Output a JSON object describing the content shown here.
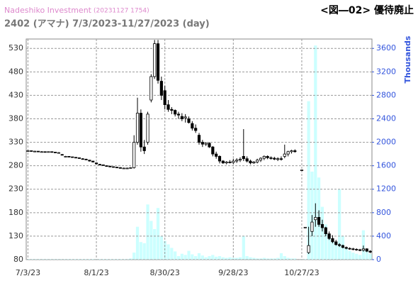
{
  "chart_data": {
    "type": "candlestick",
    "source": "Nadeshiko Investment",
    "source_stamp": "(20231127 1754)",
    "title": "2402 (アマナ) 7/3/2023-11/27/2023 (day)",
    "annotation": "<図―02> 優待廃止",
    "y2_label": "Thousands",
    "up_color": "#ffffff",
    "down_color": "#000000",
    "volume_color": "#ccffff",
    "ylim": [
      80,
      550
    ],
    "yticks": [
      80,
      130,
      180,
      230,
      280,
      330,
      380,
      430,
      480,
      530
    ],
    "y2lim": [
      0,
      3760
    ],
    "y2ticks": [
      0,
      400,
      800,
      1200,
      1600,
      2000,
      2400,
      2800,
      3200,
      3600
    ],
    "grid": true,
    "categories": [
      "7/3/23",
      null,
      null,
      null,
      null,
      null,
      null,
      null,
      null,
      null,
      null,
      null,
      null,
      null,
      null,
      null,
      null,
      null,
      null,
      null,
      "8/1/23",
      null,
      null,
      null,
      null,
      null,
      null,
      null,
      null,
      null,
      null,
      null,
      null,
      null,
      null,
      null,
      null,
      null,
      null,
      null,
      "8/30/23",
      null,
      null,
      null,
      null,
      null,
      null,
      null,
      null,
      null,
      null,
      null,
      null,
      null,
      null,
      null,
      null,
      null,
      null,
      null,
      "9/28/23",
      null,
      null,
      null,
      null,
      null,
      null,
      null,
      null,
      null,
      null,
      null,
      null,
      null,
      null,
      null,
      null,
      null,
      null,
      null,
      "10/27/23",
      null,
      null,
      null,
      null,
      null,
      null,
      null,
      null,
      null,
      null,
      null,
      null,
      null,
      null,
      null,
      null,
      null,
      null,
      null,
      null
    ],
    "ohlc": [
      [
        312,
        313,
        311,
        312
      ],
      [
        312,
        312,
        311,
        311
      ],
      [
        311,
        312,
        310,
        311
      ],
      [
        311,
        311,
        310,
        310
      ],
      [
        310,
        311,
        309,
        310
      ],
      [
        310,
        310,
        309,
        309
      ],
      [
        309,
        310,
        309,
        310
      ],
      [
        310,
        310,
        308,
        309
      ],
      [
        309,
        309,
        308,
        308
      ],
      [
        308,
        309,
        307,
        308
      ],
      [
        304,
        305,
        302,
        303
      ],
      [
        300,
        301,
        299,
        300
      ],
      [
        300,
        300,
        298,
        299
      ],
      [
        299,
        299,
        297,
        298
      ],
      [
        298,
        298,
        296,
        297
      ],
      [
        297,
        297,
        295,
        296
      ],
      [
        295,
        296,
        293,
        294
      ],
      [
        294,
        295,
        292,
        293
      ],
      [
        292,
        292,
        289,
        290
      ],
      [
        290,
        290,
        287,
        288
      ],
      [
        286,
        287,
        283,
        284
      ],
      [
        283,
        284,
        281,
        282
      ],
      [
        282,
        282,
        280,
        281
      ],
      [
        280,
        281,
        278,
        279
      ],
      [
        279,
        280,
        277,
        278
      ],
      [
        278,
        278,
        276,
        277
      ],
      [
        277,
        277,
        275,
        276
      ],
      [
        276,
        277,
        274,
        275
      ],
      [
        275,
        276,
        274,
        275
      ],
      [
        275,
        276,
        274,
        275
      ],
      [
        275,
        277,
        274,
        276
      ],
      [
        276,
        345,
        274,
        330
      ],
      [
        330,
        425,
        325,
        392
      ],
      [
        392,
        400,
        310,
        320
      ],
      [
        320,
        335,
        305,
        312
      ],
      [
        330,
        395,
        325,
        390
      ],
      [
        420,
        475,
        415,
        470
      ],
      [
        470,
        548,
        465,
        540
      ],
      [
        540,
        548,
        455,
        462
      ],
      [
        460,
        470,
        420,
        430
      ],
      [
        440,
        450,
        400,
        410
      ],
      [
        410,
        420,
        395,
        400
      ],
      [
        400,
        405,
        390,
        398
      ],
      [
        398,
        400,
        385,
        390
      ],
      [
        390,
        395,
        380,
        388
      ],
      [
        385,
        392,
        375,
        380
      ],
      [
        382,
        390,
        372,
        384
      ],
      [
        380,
        385,
        370,
        372
      ],
      [
        370,
        375,
        355,
        360
      ],
      [
        360,
        368,
        350,
        355
      ],
      [
        345,
        350,
        325,
        330
      ],
      [
        330,
        335,
        320,
        326
      ],
      [
        326,
        330,
        322,
        328
      ],
      [
        328,
        330,
        318,
        320
      ],
      [
        320,
        322,
        300,
        305
      ],
      [
        305,
        310,
        295,
        300
      ],
      [
        300,
        302,
        285,
        290
      ],
      [
        290,
        292,
        284,
        286
      ],
      [
        286,
        290,
        283,
        288
      ],
      [
        288,
        292,
        285,
        287
      ],
      [
        287,
        295,
        284,
        290
      ],
      [
        290,
        296,
        286,
        292
      ],
      [
        292,
        298,
        288,
        294
      ],
      [
        300,
        358,
        290,
        295
      ],
      [
        295,
        300,
        287,
        290
      ],
      [
        290,
        293,
        283,
        286
      ],
      [
        286,
        290,
        284,
        288
      ],
      [
        288,
        295,
        285,
        292
      ],
      [
        292,
        298,
        288,
        296
      ],
      [
        296,
        302,
        292,
        300
      ],
      [
        300,
        302,
        294,
        297
      ],
      [
        297,
        300,
        293,
        296
      ],
      [
        296,
        299,
        292,
        294
      ],
      [
        294,
        298,
        290,
        295
      ],
      [
        295,
        300,
        291,
        294
      ],
      [
        300,
        325,
        296,
        305
      ],
      [
        305,
        312,
        300,
        310
      ],
      [
        310,
        314,
        306,
        312
      ],
      [
        312,
        315,
        308,
        310
      ],
      null,
      [
        271,
        271,
        271,
        271
      ],
      [
        149,
        149,
        149,
        149
      ],
      [
        95,
        150,
        92,
        110
      ],
      [
        140,
        175,
        130,
        160
      ],
      [
        165,
        200,
        150,
        170
      ],
      [
        170,
        185,
        150,
        155
      ],
      [
        155,
        165,
        140,
        148
      ],
      [
        148,
        150,
        130,
        135
      ],
      [
        135,
        140,
        122,
        125
      ],
      [
        125,
        132,
        115,
        118
      ],
      [
        118,
        122,
        110,
        112
      ],
      [
        112,
        115,
        107,
        110
      ],
      [
        110,
        112,
        104,
        106
      ],
      [
        106,
        108,
        102,
        104
      ],
      [
        104,
        106,
        101,
        103
      ],
      [
        103,
        105,
        100,
        102
      ],
      [
        102,
        104,
        99,
        101
      ],
      [
        101,
        103,
        98,
        100
      ],
      [
        100,
        110,
        97,
        103
      ],
      [
        103,
        104,
        96,
        98
      ],
      [
        98,
        100,
        94,
        96
      ]
    ],
    "volume": [
      10,
      10,
      10,
      10,
      10,
      10,
      10,
      10,
      10,
      10,
      10,
      10,
      10,
      10,
      10,
      10,
      10,
      10,
      10,
      10,
      10,
      10,
      10,
      10,
      10,
      10,
      10,
      10,
      10,
      10,
      20,
      120,
      560,
      300,
      280,
      940,
      660,
      520,
      880,
      400,
      320,
      260,
      200,
      140,
      60,
      100,
      80,
      150,
      90,
      60,
      110,
      70,
      40,
      60,
      80,
      50,
      60,
      40,
      30,
      40,
      30,
      30,
      40,
      400,
      60,
      40,
      30,
      20,
      20,
      30,
      20,
      20,
      20,
      30,
      110,
      60,
      30,
      20,
      20,
      null,
      10,
      10,
      2700,
      1500,
      3650,
      1400,
      900,
      600,
      400,
      300,
      250,
      1200,
      400,
      200,
      150,
      120,
      100,
      80,
      500,
      150,
      100
    ]
  }
}
